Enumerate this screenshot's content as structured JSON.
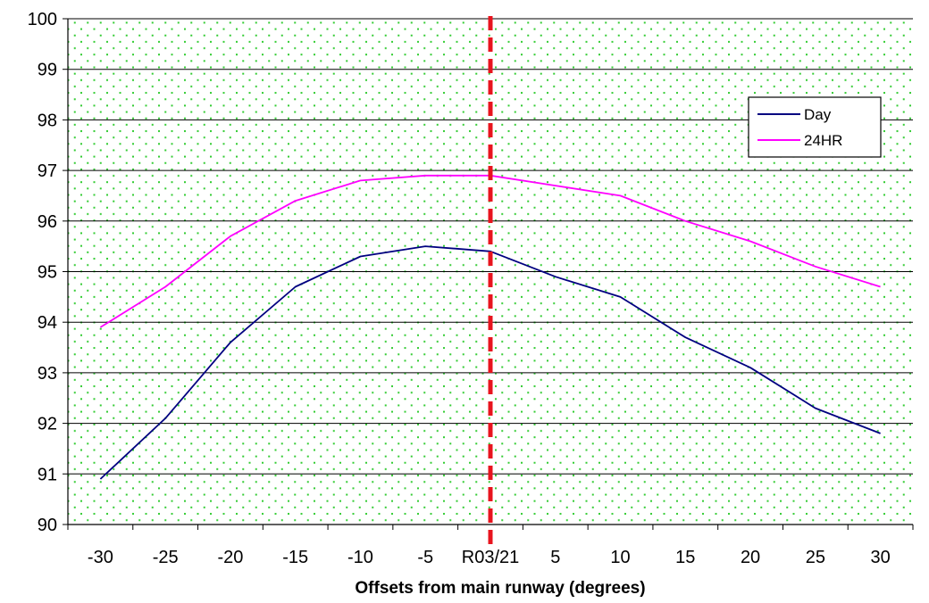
{
  "chart_data": {
    "type": "line",
    "title": "",
    "xlabel": "Offsets from main runway (degrees)",
    "ylabel": "",
    "x": [
      -30,
      -25,
      -20,
      -15,
      -10,
      -5,
      0,
      5,
      10,
      15,
      20,
      25,
      30
    ],
    "x_tick_labels": [
      "-30",
      "-25",
      "-20",
      "-15",
      "-10",
      "-5",
      "R03/21",
      "5",
      "10",
      "15",
      "20",
      "25",
      "30"
    ],
    "ylim": [
      90,
      100
    ],
    "y_ticks": [
      "90",
      "91",
      "92",
      "93",
      "94",
      "95",
      "96",
      "97",
      "98",
      "99",
      "100"
    ],
    "grid": true,
    "legend_position": "top-right",
    "series": [
      {
        "name": "Day",
        "color": "#000080",
        "values": [
          90.9,
          92.1,
          93.6,
          94.7,
          95.3,
          95.5,
          95.4,
          94.9,
          94.5,
          93.7,
          93.1,
          92.3,
          91.8
        ]
      },
      {
        "name": "24HR",
        "color": "#FF00FF",
        "values": [
          93.9,
          94.7,
          95.7,
          96.4,
          96.8,
          96.9,
          96.9,
          96.7,
          96.5,
          96.0,
          95.6,
          95.1,
          94.7
        ]
      }
    ],
    "reference_line": {
      "x": 0,
      "color": "#E8141E",
      "style": "dashed"
    },
    "plot_background": {
      "fill": "#FFFFFF",
      "dot_color": "#33CC33"
    }
  }
}
